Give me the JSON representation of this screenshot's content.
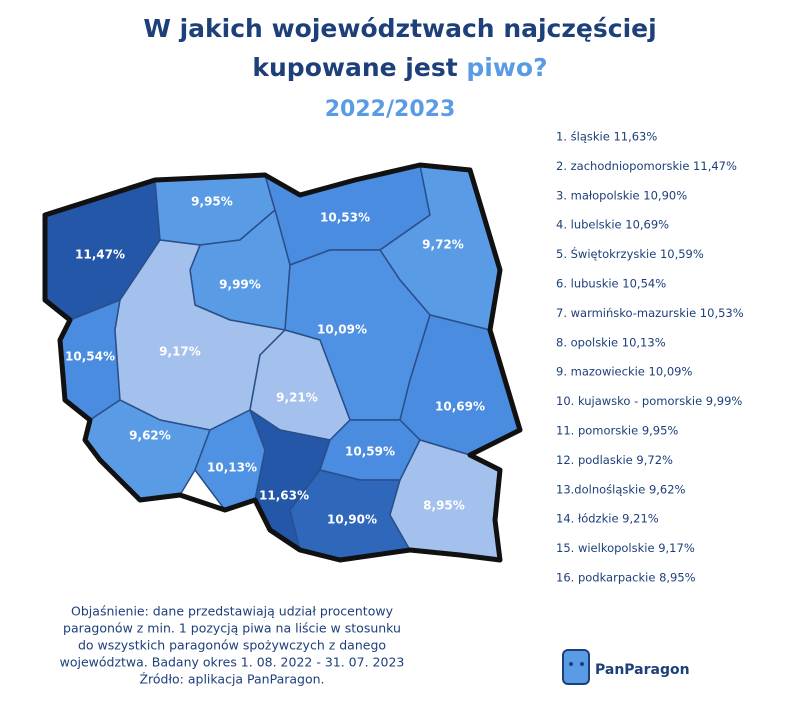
{
  "header": {
    "line1": "W jakich województwach najczęściej",
    "line2": "kupowane jest ",
    "highlight": "piwo?",
    "subtitle": "2022/2023"
  },
  "map": {
    "regions": [
      {
        "label": "11,47%",
        "color": "#2457a8"
      },
      {
        "label": "9,95%",
        "color": "#5a9be6"
      },
      {
        "label": "10,53%",
        "color": "#4a8ce0"
      },
      {
        "label": "9,72%",
        "color": "#5a9be6"
      },
      {
        "label": "9,99%",
        "color": "#5a9be6"
      },
      {
        "label": "10,54%",
        "color": "#4a8ce0"
      },
      {
        "label": "9,17%",
        "color": "#a3c1ec"
      },
      {
        "label": "10,09%",
        "color": "#4f91e2"
      },
      {
        "label": "9,21%",
        "color": "#a3c1ec"
      },
      {
        "label": "10,69%",
        "color": "#4a8ce0"
      },
      {
        "label": "9,62%",
        "color": "#5a9be6"
      },
      {
        "label": "10,13%",
        "color": "#4f91e2"
      },
      {
        "label": "11,63%",
        "color": "#2457a8"
      },
      {
        "label": "10,59%",
        "color": "#4a8ce0"
      },
      {
        "label": "10,90%",
        "color": "#2f67bb"
      },
      {
        "label": "8,95%",
        "color": "#a3c1ec"
      }
    ]
  },
  "ranking": [
    "1. śląskie 11,63%",
    "2. zachodniopomorskie 11,47%",
    "3. małopolskie 10,90%",
    "4. lubelskie 10,69%",
    "5. Świętokrzyskie 10,59%",
    "6. lubuskie 10,54%",
    "7. warmińsko-mazurskie 10,53%",
    "8. opolskie 10,13%",
    "9. mazowieckie 10,09%",
    "10. kujawsko - pomorskie 9,99%",
    "11. pomorskie 9,95%",
    "12. podlaskie 9,72%",
    "13.dolnośląskie 9,62%",
    "14. łódzkie 9,21%",
    "15. wielkopolskie 9,17%",
    "16. podkarpackie 8,95%"
  ],
  "note": [
    "Objaśnienie: dane przedstawiają udział procentowy",
    "paragonów z min. 1 pozycją piwa na liście w stosunku",
    "do wszystkich paragonów spożywczych z danego",
    "województwa. Badany okres 1. 08. 2022 - 31. 07. 2023",
    "Źródło: aplikacja PanParagon."
  ],
  "logo": "PanParagon"
}
